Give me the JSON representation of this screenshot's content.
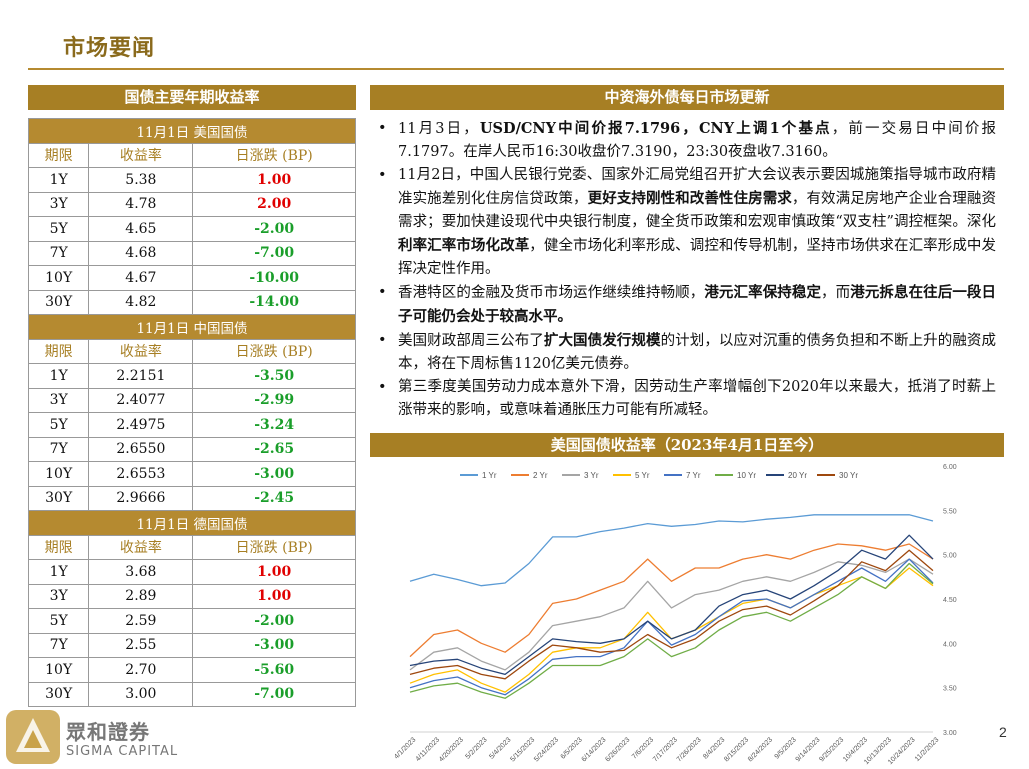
{
  "header": {
    "title": "市场要闻"
  },
  "left_bar": "国债主要年期收益率",
  "right_bar": "中资海外债每日市场更新",
  "chart_bar": "美国国债收益率（2023年4月1日至今）",
  "tables": [
    {
      "title": "11月1日  美国国债",
      "headers": [
        "期限",
        "收益率",
        "日涨跌 (BP)"
      ],
      "rows": [
        {
          "term": "1Y",
          "yield": "5.38",
          "change": "1.00",
          "dir": "up"
        },
        {
          "term": "3Y",
          "yield": "4.78",
          "change": "2.00",
          "dir": "up"
        },
        {
          "term": "5Y",
          "yield": "4.65",
          "change": "-2.00",
          "dir": "down"
        },
        {
          "term": "7Y",
          "yield": "4.68",
          "change": "-7.00",
          "dir": "down"
        },
        {
          "term": "10Y",
          "yield": "4.67",
          "change": "-10.00",
          "dir": "down"
        },
        {
          "term": "30Y",
          "yield": "4.82",
          "change": "-14.00",
          "dir": "down"
        }
      ]
    },
    {
      "title": "11月1日  中国国债",
      "headers": [
        "期限",
        "收益率",
        "日涨跌 (BP)"
      ],
      "rows": [
        {
          "term": "1Y",
          "yield": "2.2151",
          "change": "-3.50",
          "dir": "down"
        },
        {
          "term": "3Y",
          "yield": "2.4077",
          "change": "-2.99",
          "dir": "down"
        },
        {
          "term": "5Y",
          "yield": "2.4975",
          "change": "-3.24",
          "dir": "down"
        },
        {
          "term": "7Y",
          "yield": "2.6550",
          "change": "-2.65",
          "dir": "down"
        },
        {
          "term": "10Y",
          "yield": "2.6553",
          "change": "-3.00",
          "dir": "down"
        },
        {
          "term": "30Y",
          "yield": "2.9666",
          "change": "-2.45",
          "dir": "down"
        }
      ]
    },
    {
      "title": "11月1日  德国国债",
      "headers": [
        "期限",
        "收益率",
        "日涨跌 (BP)"
      ],
      "rows": [
        {
          "term": "1Y",
          "yield": "3.68",
          "change": "1.00",
          "dir": "up"
        },
        {
          "term": "3Y",
          "yield": "2.89",
          "change": "1.00",
          "dir": "up"
        },
        {
          "term": "5Y",
          "yield": "2.59",
          "change": "-2.00",
          "dir": "down"
        },
        {
          "term": "7Y",
          "yield": "2.55",
          "change": "-3.00",
          "dir": "down"
        },
        {
          "term": "10Y",
          "yield": "2.70",
          "change": "-5.60",
          "dir": "down"
        },
        {
          "term": "30Y",
          "yield": "3.00",
          "change": "-7.00",
          "dir": "down"
        }
      ]
    }
  ],
  "news": [
    [
      {
        "t": "11月3日，"
      },
      {
        "t": "USD/CNY中间价报7.1796，CNY上调1个基点",
        "b": true
      },
      {
        "t": "，前一交易日中间价报7.1797。在岸人民币16:30收盘价7.3190，23:30夜盘收7.3160。"
      }
    ],
    [
      {
        "t": "11月2日，中国人民银行党委、国家外汇局党组召开扩大会议表示要因城施策指导城市政府精准实施差别化住房信贷政策，"
      },
      {
        "t": "更好支持刚性和改善性住房需求",
        "b": true
      },
      {
        "t": "，有效满足房地产企业合理融资需求；要加快建设现代中央银行制度，健全货币政策和宏观审慎政策“双支柱”调控框架。深化"
      },
      {
        "t": "利率汇率市场化改革",
        "b": true
      },
      {
        "t": "，健全市场化利率形成、调控和传导机制，坚持市场供求在汇率形成中发挥决定性作用。"
      }
    ],
    [
      {
        "t": "香港特区的金融及货币市场运作继续维持畅顺，"
      },
      {
        "t": "港元汇率保持稳定",
        "b": true
      },
      {
        "t": "，而"
      },
      {
        "t": "港元拆息在往后一段日子可能仍会处于较高水平。",
        "b": true
      }
    ],
    [
      {
        "t": "美国财政部周三公布了"
      },
      {
        "t": "扩大国债发行规模",
        "b": true
      },
      {
        "t": "的计划，以应对沉重的债务负担和不断上升的融资成本，将在下周标售1120亿美元债券。"
      }
    ],
    [
      {
        "t": "第三季度美国劳动力成本意外下滑，因劳动生产率增幅创下2020年以来最大，抵消了时薪上涨带来的影响，或意味着通胀压力可能有所减轻。"
      }
    ]
  ],
  "chart_data": {
    "type": "line",
    "title": "美国国债收益率（2023年4月1日至今）",
    "x": [
      "4/1/2023",
      "4/11/2023",
      "4/20/2023",
      "5/2/2023",
      "5/4/2023",
      "5/15/2023",
      "5/24/2023",
      "6/5/2023",
      "6/14/2023",
      "6/26/2023",
      "7/6/2023",
      "7/17/2023",
      "7/26/2023",
      "8/4/2023",
      "8/15/2023",
      "8/24/2023",
      "9/5/2023",
      "9/14/2023",
      "9/25/2023",
      "10/4/2023",
      "10/13/2023",
      "10/24/2023",
      "11/2/2023"
    ],
    "ylim": [
      3.0,
      6.0
    ],
    "yticks": [
      "3.00",
      "3.50",
      "4.00",
      "4.50",
      "5.00",
      "5.50",
      "6.00"
    ],
    "legend_position": "top",
    "series": [
      {
        "name": "1 Yr",
        "color": "#5b9bd5",
        "values": [
          4.7,
          4.78,
          4.72,
          4.65,
          4.68,
          4.9,
          5.2,
          5.2,
          5.26,
          5.3,
          5.35,
          5.32,
          5.34,
          5.38,
          5.37,
          5.4,
          5.42,
          5.45,
          5.45,
          5.45,
          5.45,
          5.45,
          5.38
        ]
      },
      {
        "name": "2 Yr",
        "color": "#ed7d31",
        "values": [
          3.85,
          4.1,
          4.15,
          4.0,
          3.9,
          4.1,
          4.45,
          4.5,
          4.6,
          4.7,
          4.95,
          4.7,
          4.85,
          4.85,
          4.95,
          5.0,
          4.95,
          5.05,
          5.12,
          5.1,
          5.05,
          5.12,
          4.95
        ]
      },
      {
        "name": "3 Yr",
        "color": "#a5a5a5",
        "values": [
          3.7,
          3.9,
          3.95,
          3.8,
          3.7,
          3.9,
          4.2,
          4.25,
          4.3,
          4.4,
          4.7,
          4.4,
          4.55,
          4.6,
          4.7,
          4.75,
          4.7,
          4.8,
          4.92,
          4.88,
          4.8,
          4.95,
          4.78
        ]
      },
      {
        "name": "5 Yr",
        "color": "#ffc000",
        "values": [
          3.55,
          3.65,
          3.7,
          3.55,
          3.45,
          3.65,
          3.9,
          3.95,
          3.95,
          4.05,
          4.35,
          4.05,
          4.15,
          4.3,
          4.45,
          4.5,
          4.4,
          4.55,
          4.65,
          4.75,
          4.62,
          4.85,
          4.65
        ]
      },
      {
        "name": "7 Yr",
        "color": "#4472c4",
        "values": [
          3.5,
          3.58,
          3.62,
          3.5,
          3.42,
          3.6,
          3.82,
          3.85,
          3.85,
          3.95,
          4.25,
          3.98,
          4.1,
          4.3,
          4.48,
          4.5,
          4.4,
          4.55,
          4.7,
          4.85,
          4.7,
          4.95,
          4.68
        ]
      },
      {
        "name": "10 Yr",
        "color": "#70ad47",
        "values": [
          3.45,
          3.52,
          3.55,
          3.45,
          3.38,
          3.55,
          3.75,
          3.75,
          3.75,
          3.85,
          4.05,
          3.85,
          3.95,
          4.15,
          4.3,
          4.35,
          4.25,
          4.4,
          4.55,
          4.75,
          4.62,
          4.9,
          4.67
        ]
      },
      {
        "name": "20 Yr",
        "color": "#264478",
        "values": [
          3.75,
          3.8,
          3.82,
          3.72,
          3.65,
          3.85,
          4.05,
          4.02,
          4.0,
          4.05,
          4.25,
          4.05,
          4.15,
          4.42,
          4.55,
          4.6,
          4.5,
          4.65,
          4.82,
          5.05,
          4.95,
          5.22,
          4.95
        ]
      },
      {
        "name": "30 Yr",
        "color": "#9e480e",
        "values": [
          3.65,
          3.72,
          3.75,
          3.65,
          3.6,
          3.8,
          3.98,
          3.95,
          3.9,
          3.92,
          4.1,
          3.95,
          4.05,
          4.25,
          4.38,
          4.42,
          4.32,
          4.48,
          4.65,
          4.92,
          4.82,
          5.05,
          4.82
        ]
      }
    ]
  },
  "footer": {
    "brand_cn": "眾和證券",
    "brand_en": "SIGMA CAPITAL",
    "page": "2",
    "logo_color": "#c9a24a"
  }
}
